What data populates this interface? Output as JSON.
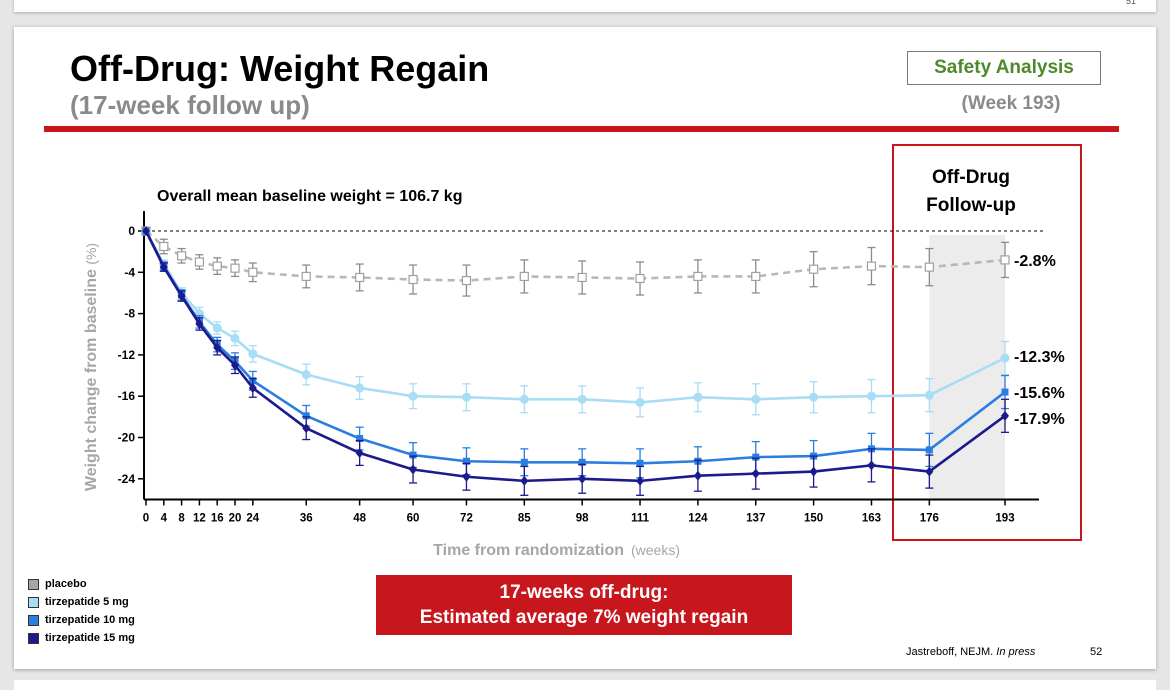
{
  "prev_slide": {
    "page_number": "51"
  },
  "slide": {
    "title": "Off-Drug: Weight Regain",
    "subtitle": "(17-week follow up)",
    "safety_label": "Safety Analysis",
    "week_label": "(Week 193)",
    "callout_line1": "17-weeks off-drug:",
    "callout_line2": "Estimated average 7% weight regain",
    "citation_text": "Jastreboff, NEJM.",
    "citation_italic": "In press",
    "page_number": "52",
    "colors": {
      "accent_red": "#c8161d",
      "safety_green": "#4e8a2a"
    }
  },
  "legend": [
    {
      "label": "placebo",
      "color": "#a6a6a6"
    },
    {
      "label": "tirzepatide 5 mg",
      "color": "#a9dcf5"
    },
    {
      "label": "tirzepatide 10 mg",
      "color": "#2a7de1"
    },
    {
      "label": "tirzepatide 15 mg",
      "color": "#1c1a8c"
    }
  ],
  "chart_data": {
    "type": "line",
    "title": "Overall mean baseline weight = 106.7 kg",
    "xlabel": "Time from randomization",
    "xlabel_unit": "(weeks)",
    "ylabel": "Weight change from baseline",
    "ylabel_unit": "(%)",
    "x": [
      0,
      4,
      8,
      12,
      16,
      20,
      24,
      36,
      48,
      60,
      72,
      85,
      98,
      111,
      124,
      137,
      150,
      163,
      176,
      193
    ],
    "x_ticks": [
      0,
      4,
      8,
      12,
      16,
      20,
      24,
      36,
      48,
      60,
      72,
      85,
      98,
      111,
      124,
      137,
      150,
      163,
      176,
      193
    ],
    "y_ticks": [
      0,
      -4,
      -8,
      -12,
      -16,
      -20,
      -24
    ],
    "ylim": [
      -26,
      0
    ],
    "off_drug_period": {
      "label_line1": "Off-Drug",
      "label_line2": "Follow-up",
      "start": 176,
      "end": 193
    },
    "series": [
      {
        "name": "placebo",
        "color": "#b8b8b8",
        "dashed": true,
        "marker": "open-square",
        "values": [
          0,
          -1.5,
          -2.4,
          -3.0,
          -3.4,
          -3.6,
          -4.0,
          -4.4,
          -4.5,
          -4.7,
          -4.8,
          -4.4,
          -4.5,
          -4.6,
          -4.4,
          -4.4,
          -3.7,
          -3.4,
          -3.5,
          -2.8
        ],
        "errors": [
          0,
          0.7,
          0.7,
          0.7,
          0.8,
          0.8,
          0.9,
          1.1,
          1.3,
          1.4,
          1.5,
          1.6,
          1.6,
          1.6,
          1.6,
          1.6,
          1.7,
          1.8,
          1.8,
          1.7
        ],
        "end_label": "-2.8%"
      },
      {
        "name": "tirzepatide 5 mg",
        "color": "#a9dcf5",
        "dashed": false,
        "marker": "circle",
        "values": [
          0,
          -3.2,
          -6.0,
          -8.0,
          -9.4,
          -10.4,
          -11.9,
          -13.9,
          -15.2,
          -16.0,
          -16.1,
          -16.3,
          -16.3,
          -16.6,
          -16.1,
          -16.3,
          -16.1,
          -16.0,
          -15.9,
          -12.3
        ],
        "errors": [
          0,
          0.4,
          0.5,
          0.6,
          0.6,
          0.7,
          0.8,
          1.0,
          1.1,
          1.2,
          1.3,
          1.3,
          1.3,
          1.4,
          1.4,
          1.5,
          1.5,
          1.6,
          1.6,
          1.6
        ],
        "end_label": "-12.3%"
      },
      {
        "name": "tirzepatide 10 mg",
        "color": "#2a7de1",
        "dashed": false,
        "marker": "square",
        "values": [
          0,
          -3.4,
          -6.2,
          -8.8,
          -11.0,
          -12.6,
          -14.5,
          -17.9,
          -20.1,
          -21.7,
          -22.3,
          -22.4,
          -22.4,
          -22.5,
          -22.3,
          -21.9,
          -21.8,
          -21.1,
          -21.2,
          -15.6
        ],
        "errors": [
          0,
          0.4,
          0.5,
          0.6,
          0.7,
          0.8,
          0.9,
          1.0,
          1.1,
          1.2,
          1.3,
          1.3,
          1.3,
          1.4,
          1.4,
          1.5,
          1.5,
          1.5,
          1.6,
          1.6
        ],
        "end_label": "-15.6%"
      },
      {
        "name": "tirzepatide 15 mg",
        "color": "#1c1a8c",
        "dashed": false,
        "marker": "diamond",
        "values": [
          0,
          -3.5,
          -6.3,
          -9.0,
          -11.3,
          -13.0,
          -15.2,
          -19.1,
          -21.5,
          -23.1,
          -23.8,
          -24.2,
          -24.0,
          -24.2,
          -23.7,
          -23.5,
          -23.3,
          -22.7,
          -23.3,
          -17.9
        ],
        "errors": [
          0,
          0.4,
          0.5,
          0.6,
          0.7,
          0.8,
          0.9,
          1.1,
          1.2,
          1.3,
          1.3,
          1.4,
          1.4,
          1.4,
          1.5,
          1.5,
          1.5,
          1.6,
          1.6,
          1.6
        ],
        "end_label": "-17.9%"
      }
    ]
  }
}
